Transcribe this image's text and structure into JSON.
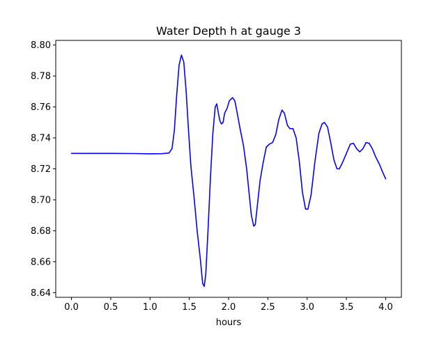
{
  "chart_data": {
    "type": "line",
    "title": "Water Depth h at gauge 3",
    "xlabel": "hours",
    "ylabel": "",
    "xlim": [
      -0.2,
      4.2
    ],
    "ylim": [
      8.637,
      8.803
    ],
    "x_ticks": [
      0.0,
      0.5,
      1.0,
      1.5,
      2.0,
      2.5,
      3.0,
      3.5,
      4.0
    ],
    "x_tick_labels": [
      "0.0",
      "0.5",
      "1.0",
      "1.5",
      "2.0",
      "2.5",
      "3.0",
      "3.5",
      "4.0"
    ],
    "y_ticks": [
      8.64,
      8.66,
      8.68,
      8.7,
      8.72,
      8.74,
      8.76,
      8.78,
      8.8
    ],
    "y_tick_labels": [
      "8.64",
      "8.66",
      "8.68",
      "8.70",
      "8.72",
      "8.74",
      "8.76",
      "8.78",
      "8.80"
    ],
    "grid": false,
    "legend": "none",
    "series": [
      {
        "color": "#0000ff",
        "points": [
          [
            0.0,
            8.73
          ],
          [
            0.5,
            8.73
          ],
          [
            0.8,
            8.7299
          ],
          [
            1.0,
            8.7297
          ],
          [
            1.15,
            8.7298
          ],
          [
            1.24,
            8.7302
          ],
          [
            1.28,
            8.733
          ],
          [
            1.31,
            8.745
          ],
          [
            1.34,
            8.768
          ],
          [
            1.37,
            8.787
          ],
          [
            1.4,
            8.7935
          ],
          [
            1.43,
            8.789
          ],
          [
            1.46,
            8.77
          ],
          [
            1.49,
            8.745
          ],
          [
            1.52,
            8.722
          ],
          [
            1.56,
            8.702
          ],
          [
            1.6,
            8.68
          ],
          [
            1.64,
            8.662
          ],
          [
            1.67,
            8.646
          ],
          [
            1.69,
            8.644
          ],
          [
            1.71,
            8.652
          ],
          [
            1.74,
            8.682
          ],
          [
            1.77,
            8.715
          ],
          [
            1.8,
            8.743
          ],
          [
            1.83,
            8.76
          ],
          [
            1.85,
            8.762
          ],
          [
            1.87,
            8.756
          ],
          [
            1.89,
            8.751
          ],
          [
            1.91,
            8.749
          ],
          [
            1.93,
            8.75
          ],
          [
            1.95,
            8.756
          ],
          [
            1.98,
            8.759
          ],
          [
            2.01,
            8.764
          ],
          [
            2.05,
            8.766
          ],
          [
            2.08,
            8.764
          ],
          [
            2.11,
            8.756
          ],
          [
            2.15,
            8.745
          ],
          [
            2.19,
            8.735
          ],
          [
            2.23,
            8.72
          ],
          [
            2.26,
            8.705
          ],
          [
            2.29,
            8.69
          ],
          [
            2.32,
            8.683
          ],
          [
            2.34,
            8.684
          ],
          [
            2.37,
            8.698
          ],
          [
            2.4,
            8.712
          ],
          [
            2.44,
            8.724
          ],
          [
            2.48,
            8.734
          ],
          [
            2.52,
            8.736
          ],
          [
            2.56,
            8.737
          ],
          [
            2.6,
            8.742
          ],
          [
            2.64,
            8.752
          ],
          [
            2.68,
            8.758
          ],
          [
            2.71,
            8.756
          ],
          [
            2.75,
            8.748
          ],
          [
            2.78,
            8.746
          ],
          [
            2.82,
            8.746
          ],
          [
            2.86,
            8.74
          ],
          [
            2.9,
            8.725
          ],
          [
            2.94,
            8.705
          ],
          [
            2.98,
            8.694
          ],
          [
            3.01,
            8.694
          ],
          [
            3.05,
            8.703
          ],
          [
            3.1,
            8.725
          ],
          [
            3.15,
            8.743
          ],
          [
            3.19,
            8.749
          ],
          [
            3.22,
            8.75
          ],
          [
            3.26,
            8.747
          ],
          [
            3.3,
            8.737
          ],
          [
            3.34,
            8.726
          ],
          [
            3.38,
            8.72
          ],
          [
            3.41,
            8.72
          ],
          [
            3.45,
            8.724
          ],
          [
            3.5,
            8.73
          ],
          [
            3.55,
            8.736
          ],
          [
            3.59,
            8.7365
          ],
          [
            3.63,
            8.733
          ],
          [
            3.67,
            8.731
          ],
          [
            3.71,
            8.733
          ],
          [
            3.75,
            8.737
          ],
          [
            3.79,
            8.7365
          ],
          [
            3.83,
            8.733
          ],
          [
            3.87,
            8.728
          ],
          [
            3.92,
            8.723
          ],
          [
            3.96,
            8.718
          ],
          [
            4.0,
            8.7135
          ]
        ]
      }
    ]
  }
}
